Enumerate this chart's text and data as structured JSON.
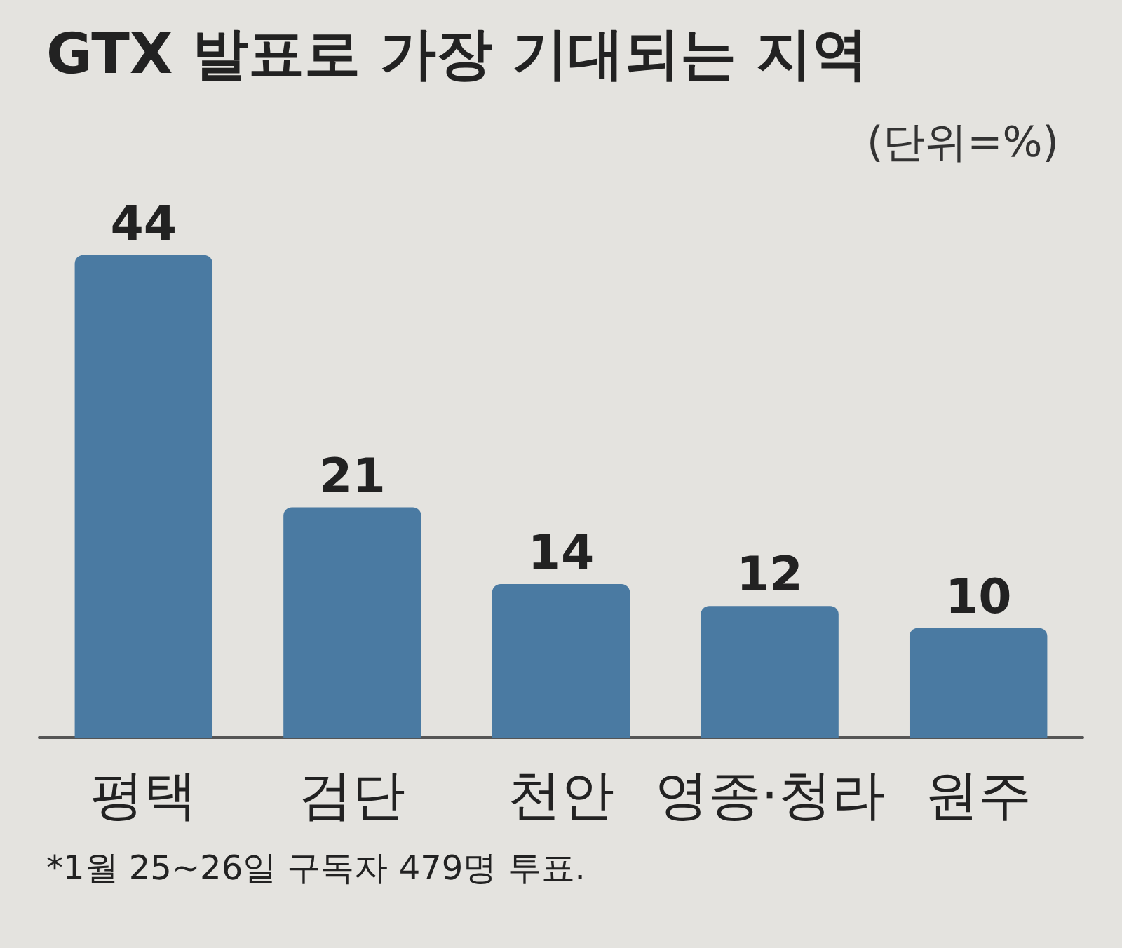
{
  "chart_data": {
    "type": "bar",
    "title": "GTX 발표로 가장 기대되는 지역",
    "subtitle": "(단위=%)",
    "categories": [
      "평택",
      "검단",
      "천안",
      "영종·청라",
      "원주"
    ],
    "values": [
      44,
      21,
      14,
      12,
      10
    ],
    "color": "#4a7aa2",
    "data_labels": true,
    "tick_labels": "x",
    "annotations": [
      "*1월 25~26일 구독자 479명 투표."
    ]
  }
}
